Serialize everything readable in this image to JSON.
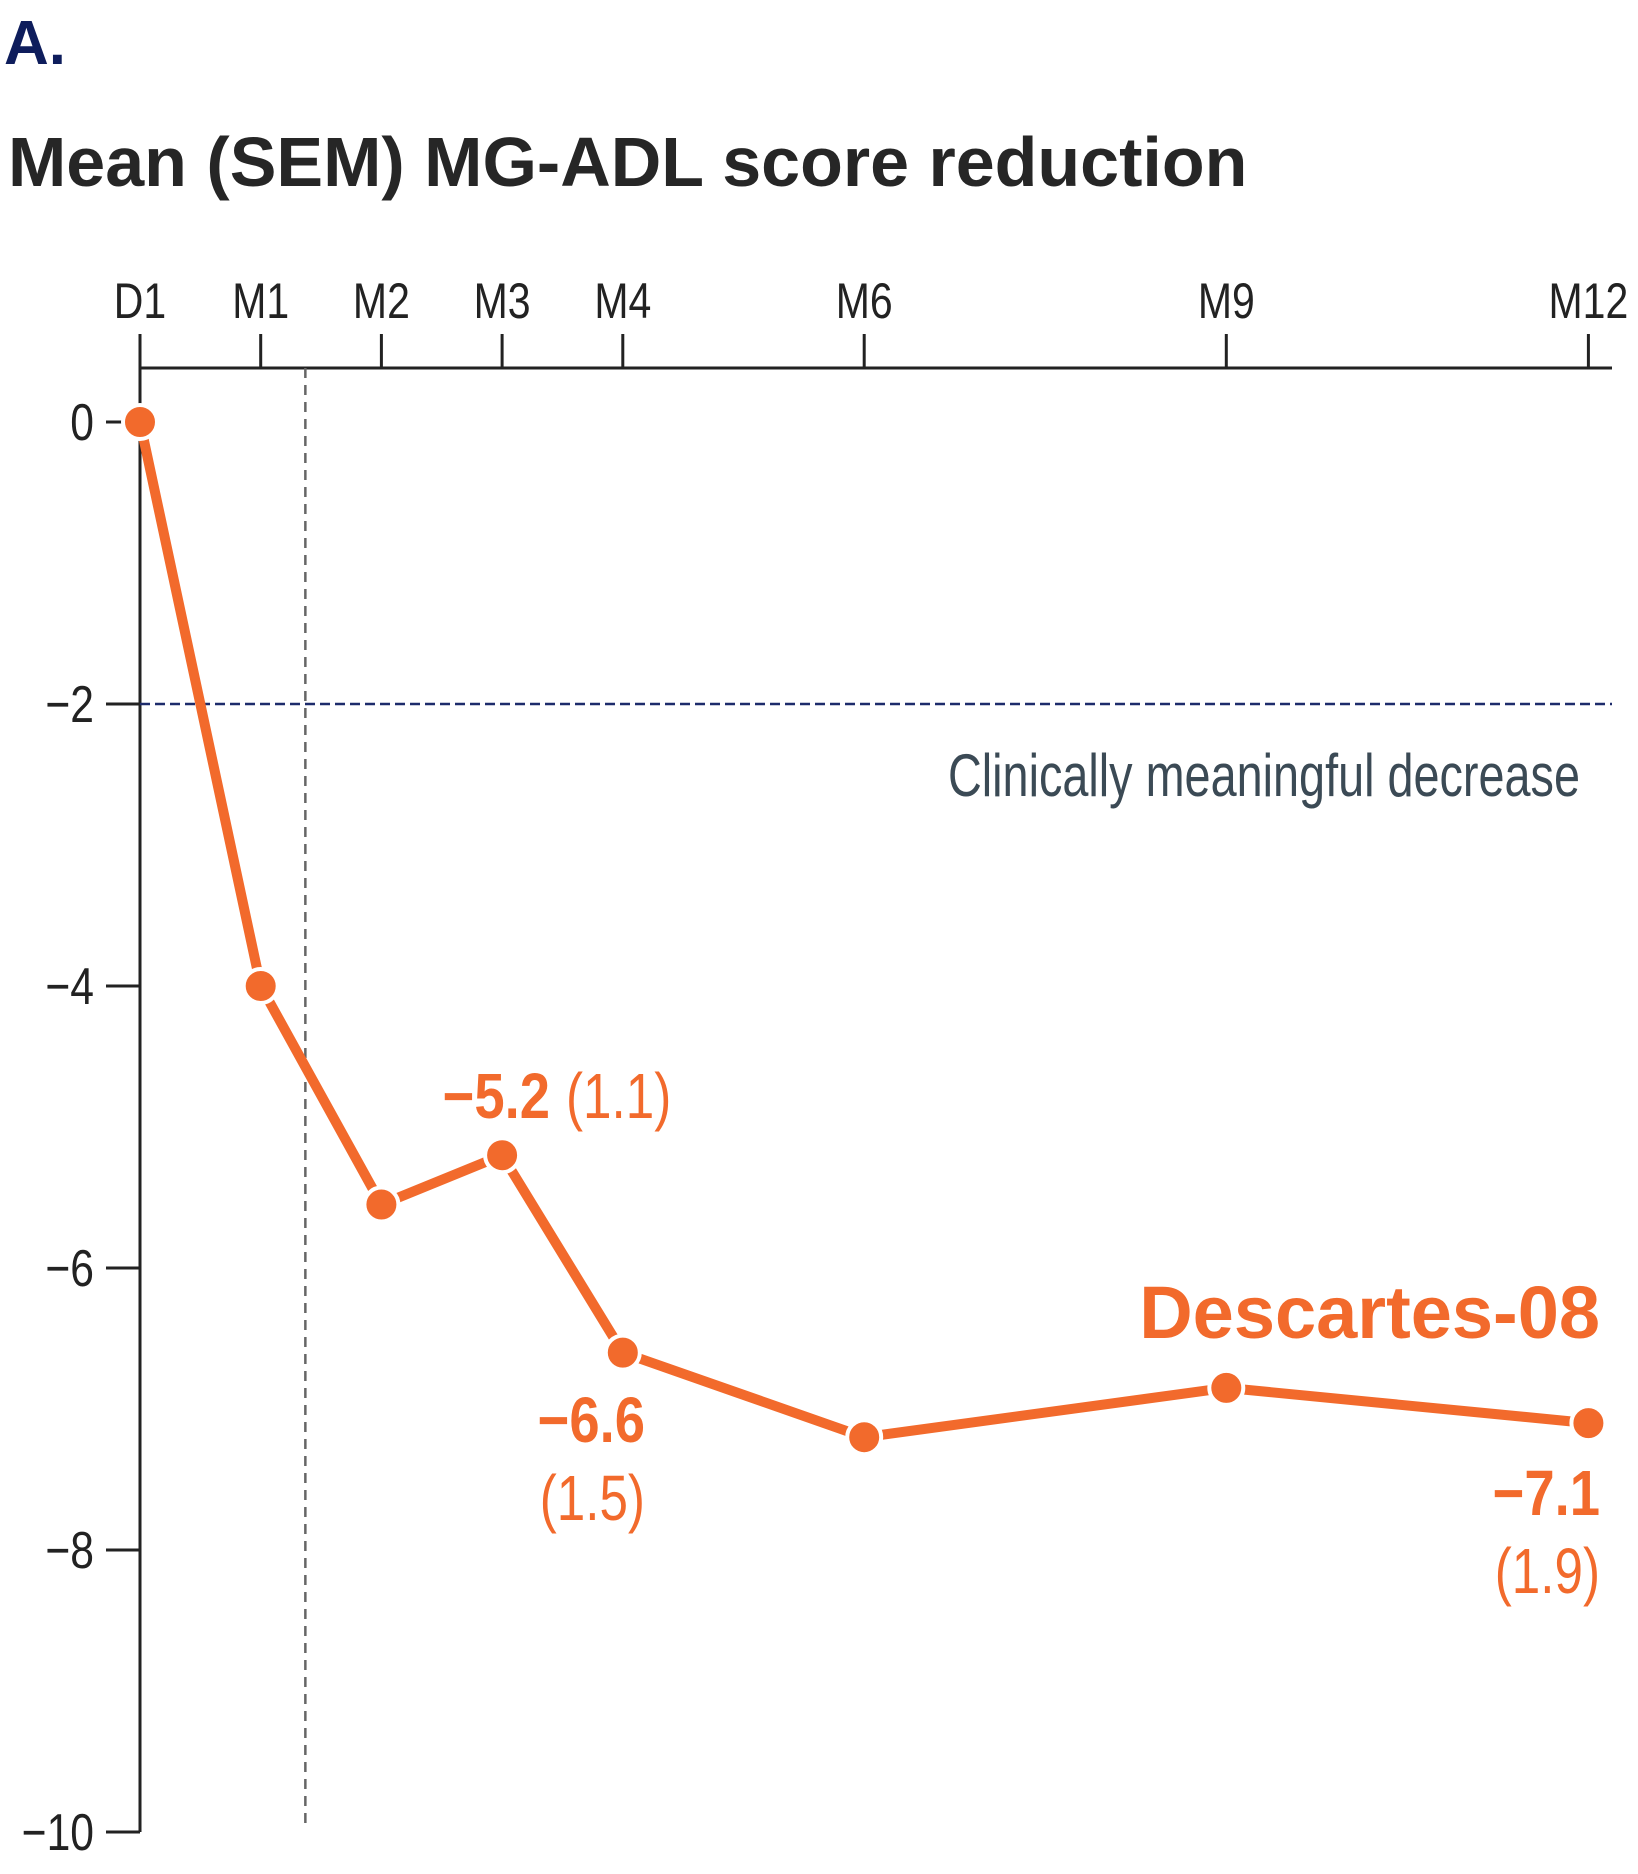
{
  "panel_label": "A.",
  "colors": {
    "series": "#f26a2c",
    "axis": "#222222",
    "threshold": "#1d2b6b",
    "panel": "#0e1d5c",
    "threshold_label": "#3b4a55",
    "dashed_vertical": "#666666"
  },
  "chart_data": {
    "type": "line",
    "title": "Mean (SEM) MG-ADL score reduction",
    "xlabel": "",
    "ylabel": "",
    "x_axis_position": "top",
    "x_months": [
      0,
      1,
      2,
      3,
      4,
      6,
      9,
      12
    ],
    "categories": [
      "D1",
      "M1",
      "M2",
      "M3",
      "M4",
      "M6",
      "M9",
      "M12"
    ],
    "ylim": [
      -10,
      0
    ],
    "yticks": [
      0,
      -2,
      -4,
      -6,
      -8,
      -10
    ],
    "ytick_labels": [
      "0",
      "−2",
      "−4",
      "−6",
      "−8",
      "−10"
    ],
    "grid": false,
    "series": [
      {
        "name": "Descartes-08",
        "values": [
          0,
          -4.0,
          -5.55,
          -5.2,
          -6.6,
          -7.2,
          -6.85,
          -7.1
        ]
      }
    ],
    "threshold": {
      "value": -2,
      "label": "Clinically meaningful decrease"
    },
    "vertical_marker_month": 1.37,
    "annotations": [
      {
        "category": "M3",
        "value": "−5.2",
        "sem": "(1.1)"
      },
      {
        "category": "M4",
        "value": "−6.6",
        "sem": "(1.5)"
      },
      {
        "category": "M12",
        "value": "−7.1",
        "sem": "(1.9)"
      }
    ]
  }
}
